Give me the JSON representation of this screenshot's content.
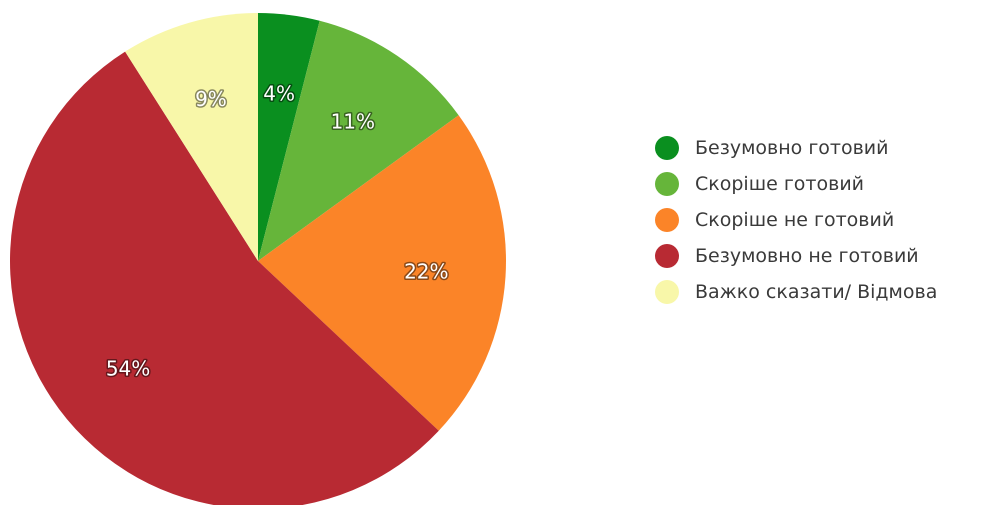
{
  "chart_data": {
    "type": "pie",
    "start_angle_deg": 0,
    "direction": "clockwise",
    "legend_position": "right",
    "slices": [
      {
        "name": "Безумовно готовий",
        "value": 4,
        "label": "4%",
        "color": "#0a8f1f"
      },
      {
        "name": "Скоріше готовий",
        "value": 11,
        "label": "11%",
        "color": "#66b53a"
      },
      {
        "name": "Скоріше не готовий",
        "value": 22,
        "label": "22%",
        "color": "#fb8428"
      },
      {
        "name": "Безумовно не готовий",
        "value": 54,
        "label": "54%",
        "color": "#b82a33"
      },
      {
        "name": "Важко сказати/ Відмова",
        "value": 9,
        "label": "9%",
        "color": "#f8f7a9"
      }
    ]
  }
}
